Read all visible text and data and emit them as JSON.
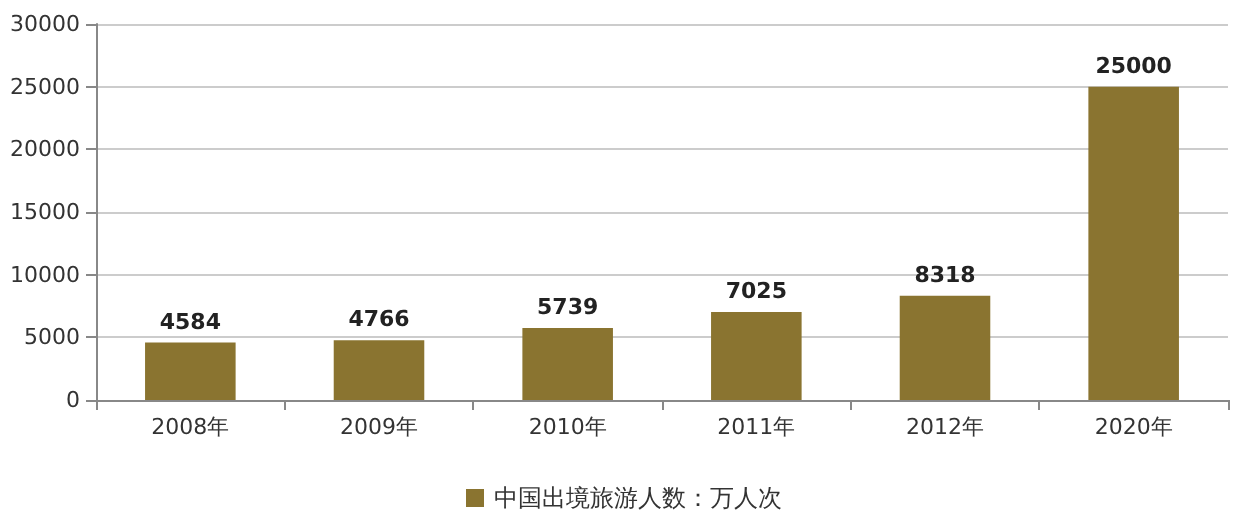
{
  "chart_data": {
    "type": "bar",
    "categories": [
      "2008年",
      "2009年",
      "2010年",
      "2011年",
      "2012年",
      "2020年"
    ],
    "series": [
      {
        "name": "中国出境旅游人数：万人次",
        "color": "#8a7430",
        "values": [
          4584,
          4766,
          5739,
          7025,
          8318,
          25000
        ]
      }
    ],
    "ylim": [
      0,
      30000
    ],
    "yticks": [
      0,
      5000,
      10000,
      15000,
      20000,
      25000,
      30000
    ],
    "grid": "y",
    "legend": "bottom",
    "data_labels": true
  }
}
